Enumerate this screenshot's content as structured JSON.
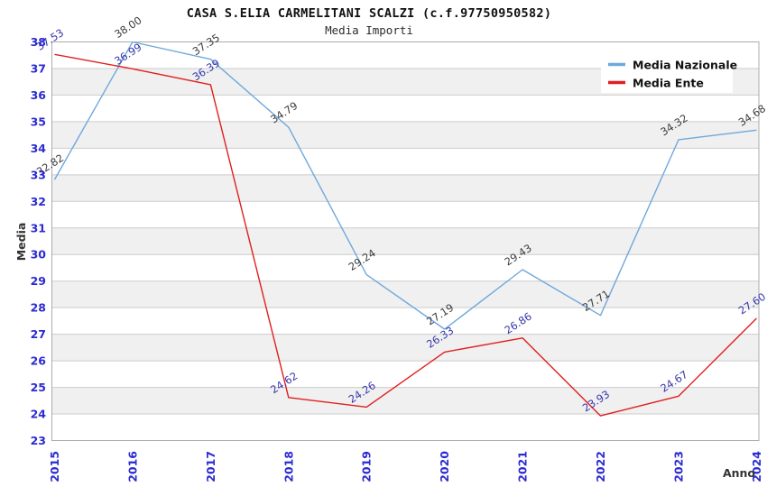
{
  "header": {
    "title": "CASA S.ELIA CARMELITANI SCALZI (c.f.97750950582)",
    "subtitle": "Media Importi"
  },
  "chart_data": {
    "type": "line",
    "x": [
      2015,
      2016,
      2017,
      2018,
      2019,
      2020,
      2021,
      2022,
      2023,
      2024
    ],
    "series": [
      {
        "name": "Media Nazionale",
        "color": "#6fa8dc",
        "label_color": "#3c3c3c",
        "values": [
          32.82,
          38.0,
          37.35,
          34.79,
          29.24,
          27.19,
          29.43,
          27.71,
          34.32,
          34.68
        ]
      },
      {
        "name": "Media Ente",
        "color": "#e01f1f",
        "label_color": "#3636ad",
        "values": [
          37.53,
          36.99,
          36.39,
          24.62,
          24.26,
          26.33,
          26.86,
          23.93,
          24.67,
          27.6
        ]
      }
    ],
    "xlabel": "Anno",
    "ylabel": "Media",
    "ylim": [
      23,
      38
    ],
    "ytick_step": 1,
    "legend_position": "top-right",
    "grid": "horizontal-lines-with-alternating-bands",
    "value_label_decimals": 2,
    "style": {
      "band_color": "#f0f0f0",
      "grid_color": "#cccccc",
      "border_color": "#ababab",
      "tick_label_color": "#2b2bd0",
      "axis_title_color": "#333333",
      "legend_text_color": "#111111",
      "legend_bg": "#ffffff"
    }
  }
}
